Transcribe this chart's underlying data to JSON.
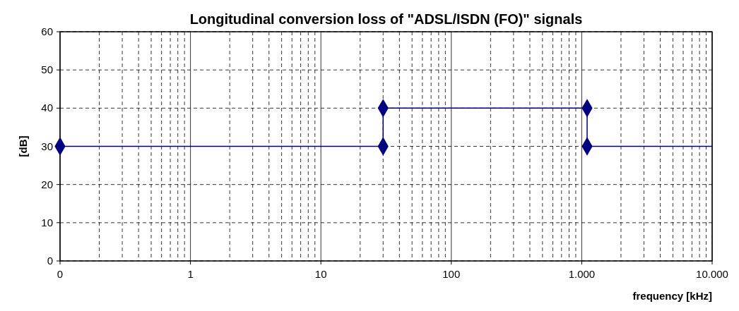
{
  "chart_data": {
    "type": "line",
    "title": "Longitudinal conversion loss of \"ADSL/ISDN (FO)\" signals",
    "xlabel": "frequency [kHz]",
    "ylabel": "[dB]",
    "log": "x",
    "xlim": [
      0.1,
      10000
    ],
    "xticks": [
      {
        "value": 0.1,
        "label": "0"
      },
      1,
      10,
      100,
      {
        "value": 1000,
        "label": "1.000"
      },
      {
        "value": 10000,
        "label": "10.000"
      }
    ],
    "ylim": [
      0,
      60
    ],
    "yticks": [
      0,
      10,
      20,
      30,
      40,
      50,
      60
    ],
    "grid": true,
    "series": [
      {
        "color": "#000080",
        "marker": "none",
        "x": [
          0.1,
          30,
          30,
          1100,
          1100,
          10000
        ],
        "values": [
          30,
          30,
          40,
          40,
          30,
          30
        ]
      },
      {
        "type": "scatter",
        "color": "#000080",
        "marker": "diamond",
        "x": [
          0.1,
          30,
          30,
          1100,
          1100
        ],
        "values": [
          30,
          30,
          40,
          40,
          30
        ]
      }
    ]
  }
}
